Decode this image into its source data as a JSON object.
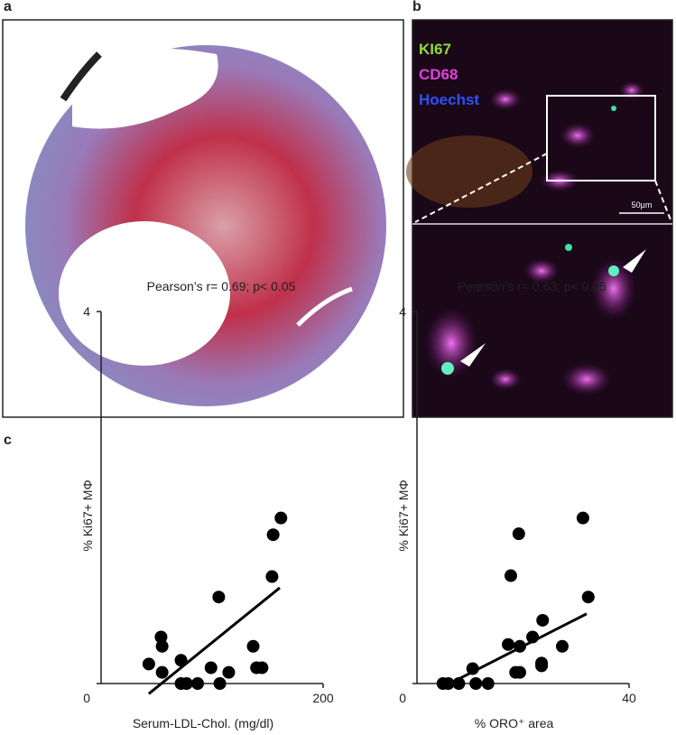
{
  "panel_labels": [
    "a",
    "b",
    "c"
  ],
  "image_labels": [
    "KI67",
    "CD68",
    "Hoechst"
  ],
  "scale_bar": "50µm",
  "chart_data": [
    {
      "type": "scatter",
      "title": "Pearson’s r= 0.69; p< 0.05",
      "x_label": "Serum-LDL-Chol. (mg/dl)",
      "y_label": "% Ki67+ MΦ",
      "xlim": [
        0,
        200
      ],
      "ylim": [
        0,
        4
      ],
      "xticks": [
        200
      ],
      "yticks": [
        0,
        4
      ],
      "color": "#000000",
      "x": [
        43,
        54,
        55,
        55,
        72,
        72,
        77,
        87,
        99,
        106,
        107,
        115,
        137,
        140,
        145,
        154,
        155,
        162
      ],
      "values": [
        0.21,
        0.5,
        0.4,
        0.12,
        0.25,
        0,
        0,
        0,
        0.17,
        0.93,
        0,
        0.12,
        0.4,
        0.17,
        0.17,
        1.15,
        1.6,
        1.78
      ],
      "fit": {
        "x": [
          43,
          161
        ],
        "y": [
          -0.11,
          1.03
        ]
      }
    },
    {
      "type": "scatter",
      "title": "Pearson’s r= 0.63; p< 0.05",
      "x_label": "% ORO⁺ area",
      "y_label": "% Ki67+ MΦ",
      "xlim": [
        0,
        40
      ],
      "ylim": [
        0,
        4
      ],
      "xticks": [
        40
      ],
      "yticks": [
        0,
        4
      ],
      "color": "#000000",
      "x": [
        4.9,
        5.9,
        7.9,
        10.5,
        11.1,
        13.4,
        17.2,
        17.7,
        18.6,
        19.2,
        19.4,
        19.4,
        21.8,
        23.5,
        23.5,
        23.7,
        27.4,
        31.3,
        32.3
      ],
      "values": [
        0,
        0,
        0,
        0.16,
        0,
        0,
        0.42,
        1.16,
        0.12,
        1.61,
        0.12,
        0.4,
        0.5,
        0.22,
        0.19,
        0.68,
        0.4,
        1.78,
        0.93
      ],
      "fit": {
        "x": [
          4.8,
          32
        ],
        "y": [
          -0.04,
          0.75
        ]
      }
    }
  ]
}
